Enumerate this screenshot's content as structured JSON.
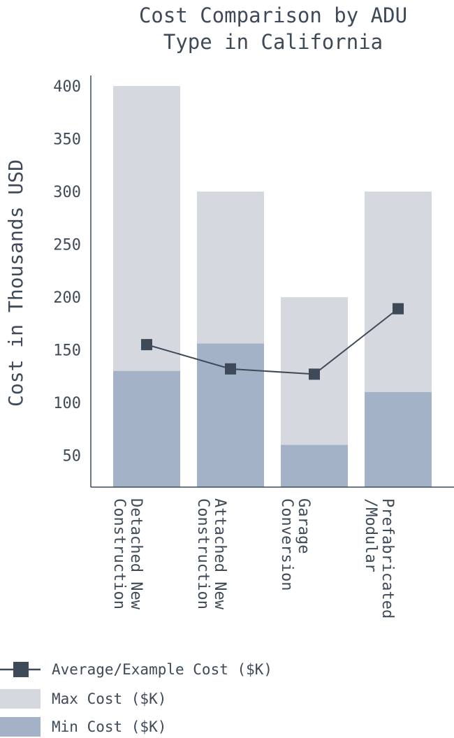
{
  "chart_data": {
    "type": "bar",
    "title_lines": [
      "Cost Comparison by ADU",
      "Type in California"
    ],
    "xlabel": "",
    "ylabel": "Cost in Thousands USD",
    "ylim": [
      20,
      410
    ],
    "yticks": [
      50,
      100,
      150,
      200,
      250,
      300,
      350,
      400
    ],
    "categories": [
      [
        "Detached New",
        "Construction"
      ],
      [
        "Attached New",
        "Construction"
      ],
      [
        "Garage",
        "Conversion"
      ],
      [
        "Prefabricated",
        "/Modular"
      ]
    ],
    "series": [
      {
        "name": "Max Cost ($K)",
        "kind": "bar",
        "color": "#d5d8de",
        "values": [
          400,
          300,
          200,
          300
        ]
      },
      {
        "name": "Min Cost ($K)",
        "kind": "bar",
        "color": "#a4b2c7",
        "values": [
          130,
          156,
          60,
          110
        ]
      },
      {
        "name": "Average/Example Cost ($K)",
        "kind": "line",
        "color": "#3f4a58",
        "values": [
          155,
          132,
          127,
          189
        ]
      }
    ],
    "legend_position": "bottom-left",
    "grid": false
  }
}
